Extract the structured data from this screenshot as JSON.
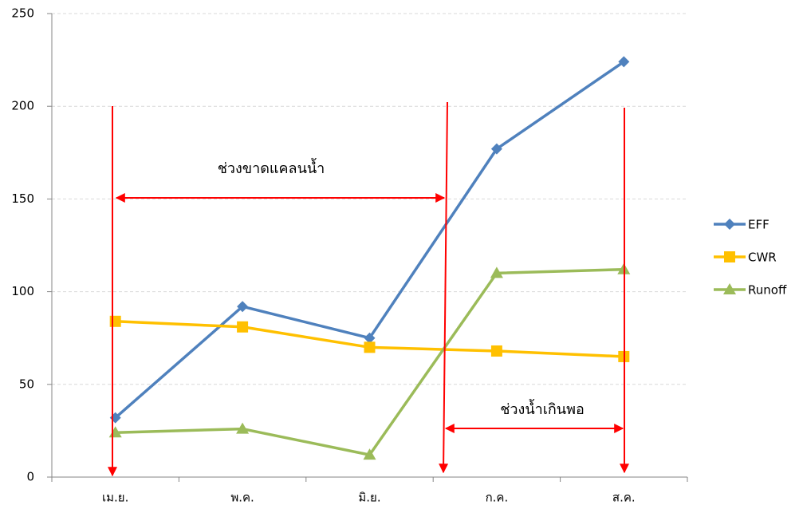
{
  "chart_data": {
    "type": "line",
    "categories": [
      "เม.ย.",
      "พ.ค.",
      "มิ.ย.",
      "ก.ค.",
      "ส.ค."
    ],
    "series": [
      {
        "name": "EFF",
        "color": "#4f81bd",
        "marker": "diamond",
        "values": [
          32,
          92,
          75,
          177,
          224
        ]
      },
      {
        "name": "CWR",
        "color": "#ffc000",
        "marker": "square",
        "values": [
          84,
          81,
          70,
          68,
          65
        ]
      },
      {
        "name": "Runoff",
        "color": "#9bbb59",
        "marker": "triangle",
        "values": [
          24,
          26,
          12,
          110,
          112
        ]
      }
    ],
    "ylim": [
      0,
      250
    ],
    "yticks": [
      0,
      50,
      100,
      150,
      200,
      250
    ],
    "grid": true,
    "legend": "right",
    "annotations": [
      "ช่วงขาดแคลนน้ำ",
      "ช่วงน้ำเกินพอ"
    ]
  }
}
